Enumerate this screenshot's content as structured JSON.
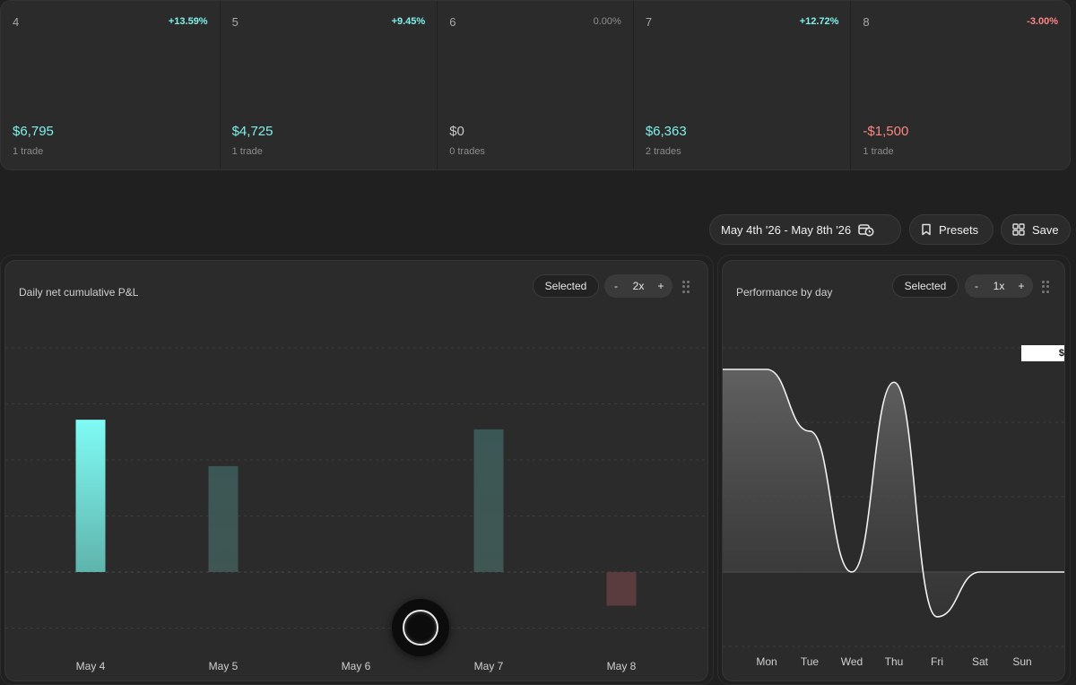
{
  "cards": [
    {
      "day": "4",
      "pct": "+13.59%",
      "amount": "$6,795",
      "trades": "1 trade",
      "tone": "pos"
    },
    {
      "day": "5",
      "pct": "+9.45%",
      "amount": "$4,725",
      "trades": "1 trade",
      "tone": "pos"
    },
    {
      "day": "6",
      "pct": "0.00%",
      "amount": "$0",
      "trades": "0 trades",
      "tone": "zero"
    },
    {
      "day": "7",
      "pct": "+12.72%",
      "amount": "$6,363",
      "trades": "2 trades",
      "tone": "pos"
    },
    {
      "day": "8",
      "pct": "-3.00%",
      "amount": "-$1,500",
      "trades": "1 trade",
      "tone": "neg"
    }
  ],
  "toolbar": {
    "date_range": "May 4th '26 - May 8th '26",
    "date_icon": "calendar-clock-icon",
    "presets_label": "Presets",
    "presets_icon": "bookmark-icon",
    "save_label": "Save",
    "save_icon": "grid-icon"
  },
  "left_panel": {
    "title": "Daily net cumulative P&L",
    "selected_label": "Selected",
    "zoom_minus": "-",
    "zoom_value": "2x",
    "zoom_plus": "+"
  },
  "right_panel": {
    "title": "Performance by day",
    "selected_label": "Selected",
    "zoom_minus": "-",
    "zoom_value": "1x",
    "zoom_plus": "+",
    "tooltip_text": "$"
  },
  "chart_data": [
    {
      "type": "bar",
      "title": "Daily net cumulative P&L",
      "categories": [
        "May 4",
        "May 5",
        "May 6",
        "May 7",
        "May 8"
      ],
      "values": [
        6795,
        4725,
        0,
        6363,
        -1500
      ],
      "ylim": [
        -2500,
        10000
      ],
      "grid": true,
      "colors": {
        "highlight": "#7ff7f0",
        "positive": "#3f5a57",
        "negative": "#5a3c3e"
      }
    },
    {
      "type": "area",
      "title": "Performance by day",
      "categories": [
        "Mon",
        "Tue",
        "Wed",
        "Thu",
        "Fri",
        "Sat",
        "Sun"
      ],
      "values": [
        6795,
        4725,
        0,
        6363,
        -1500,
        0,
        0
      ],
      "ylim": [
        -2500,
        7500
      ],
      "grid": true
    }
  ]
}
